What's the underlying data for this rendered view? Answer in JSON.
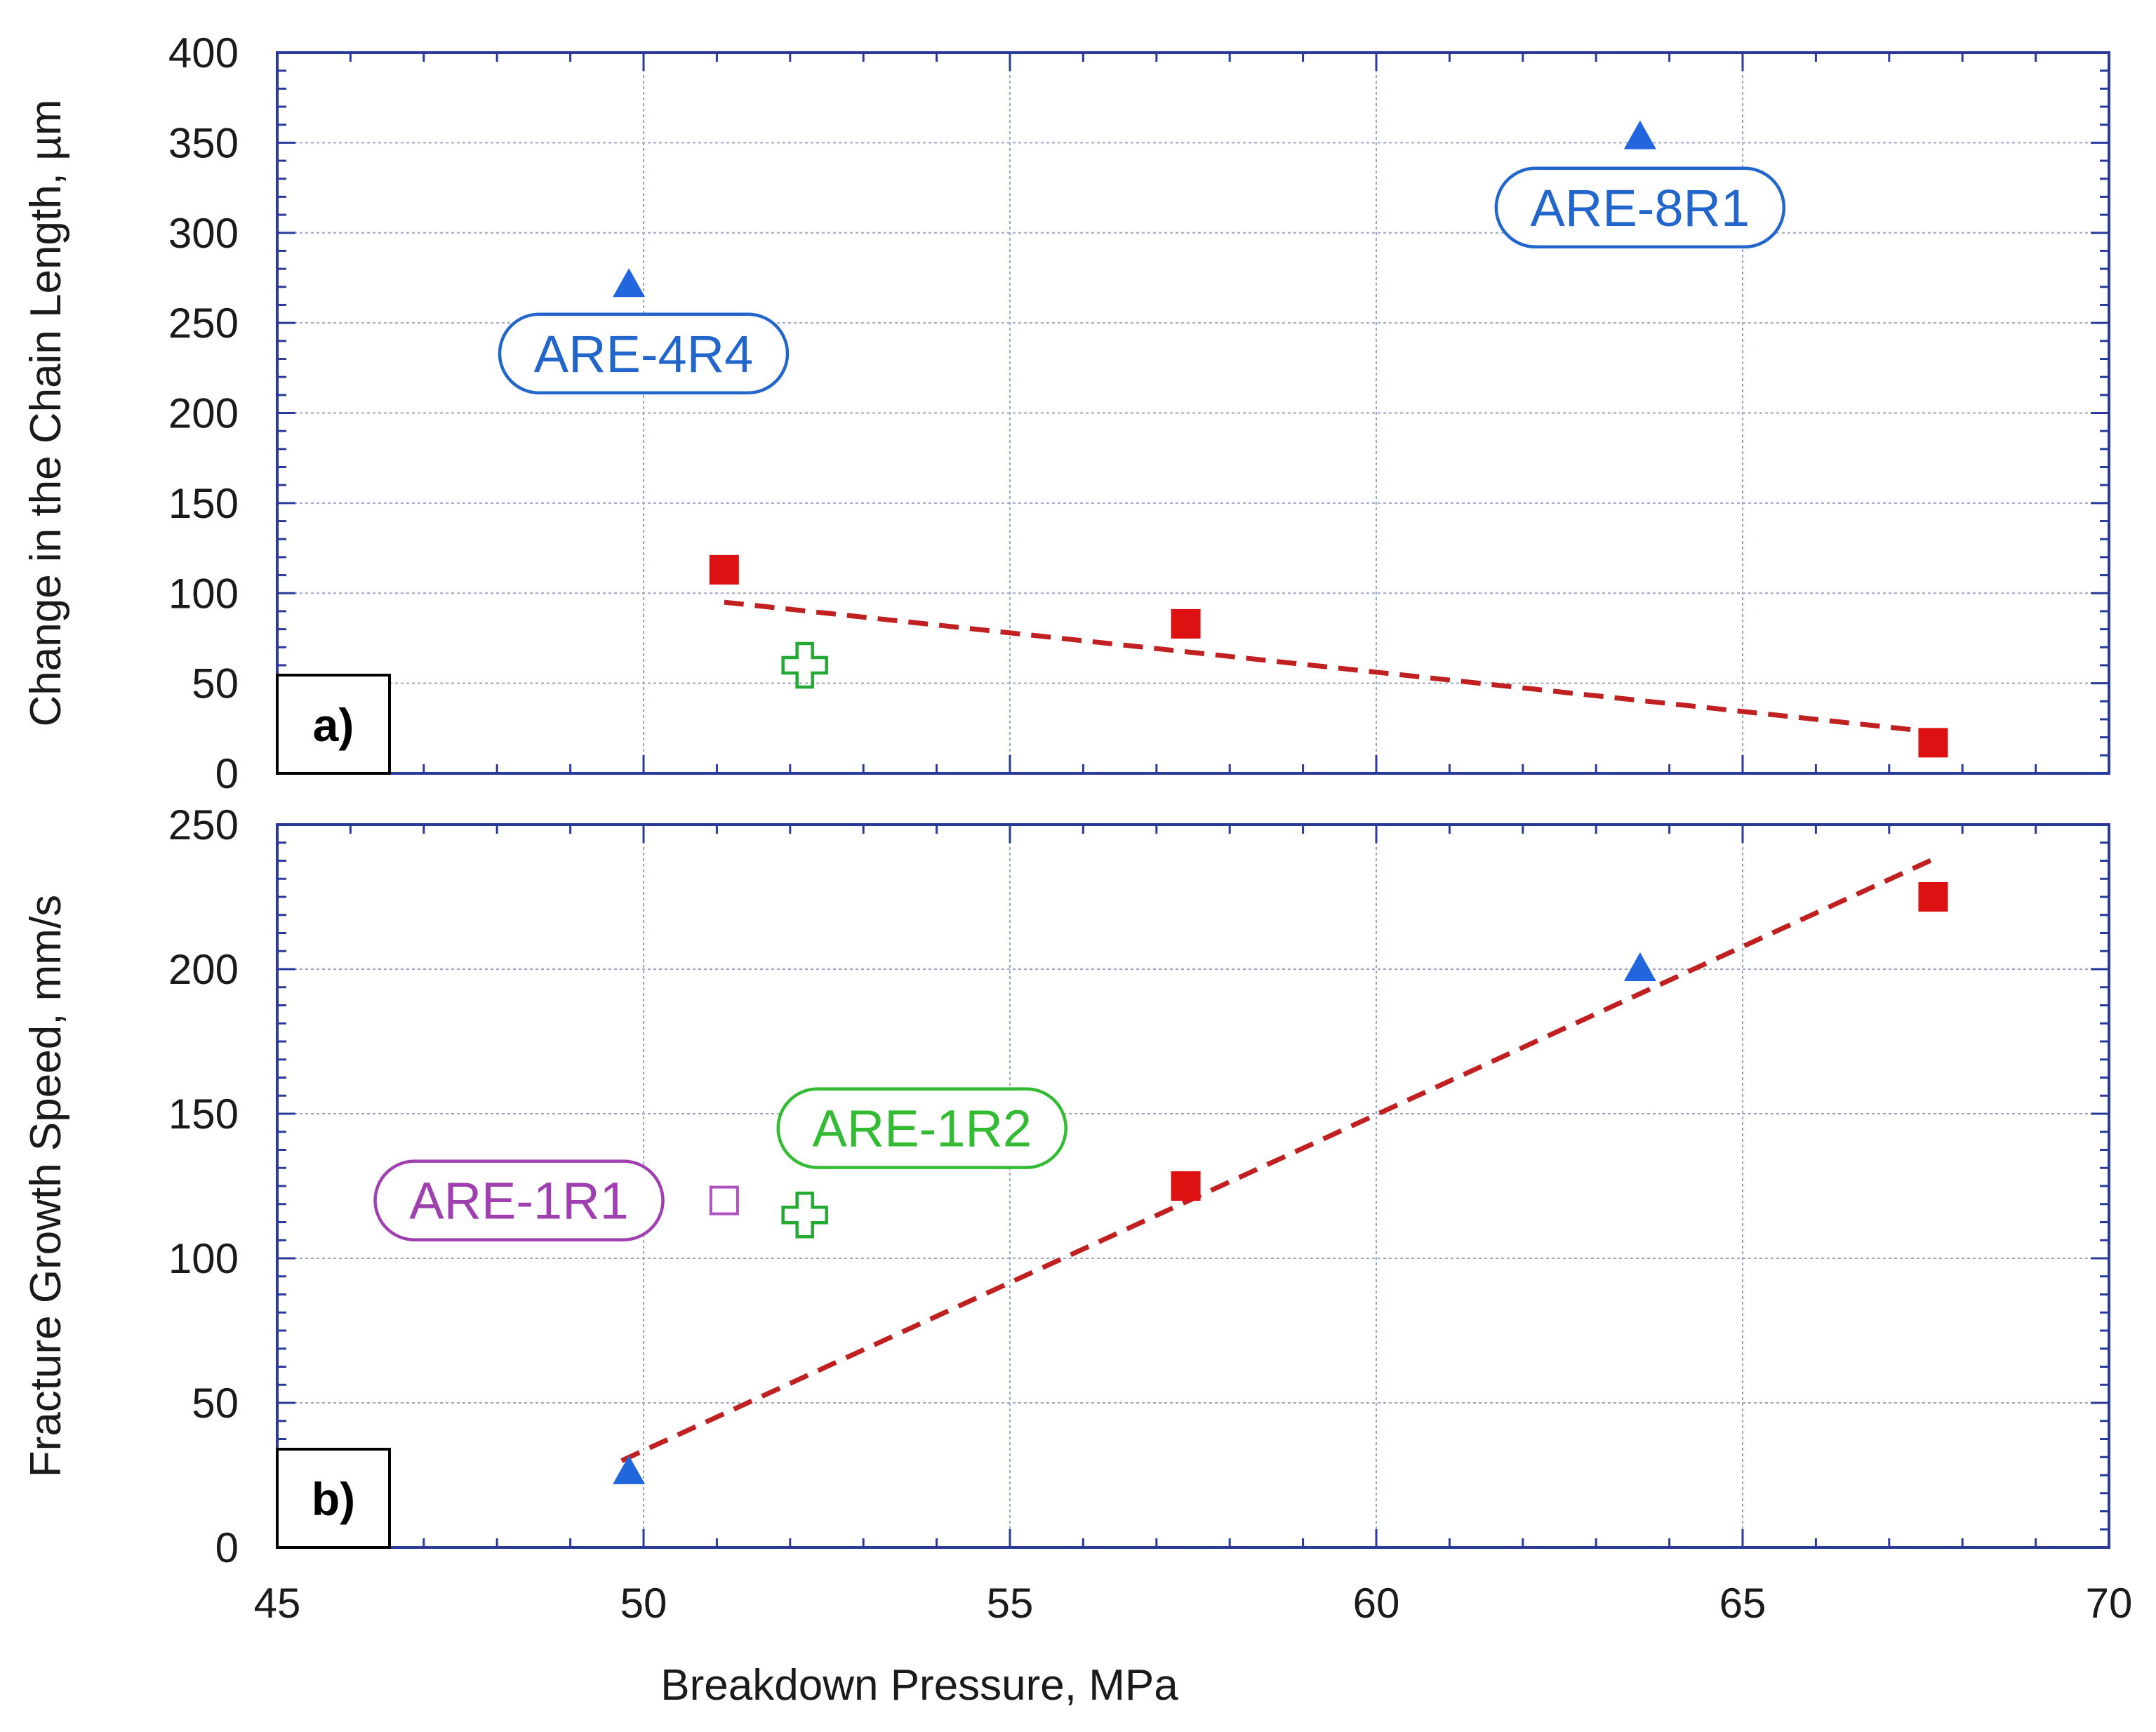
{
  "chart_data": [
    {
      "type": "scatter",
      "panel_label": "a)",
      "ylabel": "Change in the Chain Length, µm",
      "xlabel": "",
      "xlim": [
        45,
        70
      ],
      "ylim": [
        0,
        400
      ],
      "y_ticks": [
        0,
        50,
        100,
        150,
        200,
        250,
        300,
        350,
        400
      ],
      "grid": true,
      "series": [
        {
          "name": "red squares",
          "marker": "filled-square",
          "color": "#dd1111",
          "points": [
            {
              "x": 51.1,
              "y": 113
            },
            {
              "x": 57.4,
              "y": 83
            },
            {
              "x": 67.6,
              "y": 17
            }
          ]
        },
        {
          "name": "blue triangles",
          "marker": "filled-triangle",
          "color": "#2266dd",
          "points": [
            {
              "x": 49.8,
              "y": 271
            },
            {
              "x": 63.6,
              "y": 353
            }
          ]
        },
        {
          "name": "green cross",
          "marker": "open-cross",
          "color": "#22aa33",
          "points": [
            {
              "x": 52.2,
              "y": 60
            }
          ]
        }
      ],
      "trendline": {
        "color": "#c02020",
        "points": [
          {
            "x": 51.1,
            "y": 95
          },
          {
            "x": 67.6,
            "y": 23
          }
        ]
      },
      "annotations": [
        {
          "text": "ARE-4R4",
          "color": "#2266cc",
          "x": 50.0,
          "y": 233
        },
        {
          "text": "ARE-8R1",
          "color": "#2266cc",
          "x": 63.6,
          "y": 314
        }
      ]
    },
    {
      "type": "scatter",
      "panel_label": "b)",
      "ylabel": "Fracture Growth Speed, mm/s",
      "xlabel": "Breakdown Pressure, MPa",
      "xlim": [
        45,
        70
      ],
      "ylim": [
        0,
        250
      ],
      "x_ticks": [
        45,
        50,
        55,
        60,
        65,
        70
      ],
      "y_ticks": [
        0,
        50,
        100,
        150,
        200,
        250
      ],
      "grid": true,
      "series": [
        {
          "name": "red squares",
          "marker": "filled-square",
          "color": "#dd1111",
          "points": [
            {
              "x": 57.4,
              "y": 125
            },
            {
              "x": 67.6,
              "y": 225
            }
          ]
        },
        {
          "name": "blue triangles",
          "marker": "filled-triangle",
          "color": "#2266dd",
          "points": [
            {
              "x": 49.8,
              "y": 26
            },
            {
              "x": 63.6,
              "y": 200
            }
          ]
        },
        {
          "name": "green cross",
          "marker": "open-cross",
          "color": "#22aa33",
          "points": [
            {
              "x": 52.2,
              "y": 115
            }
          ]
        },
        {
          "name": "magenta square",
          "marker": "open-square",
          "color": "#b050c0",
          "points": [
            {
              "x": 51.1,
              "y": 120
            }
          ]
        }
      ],
      "trendline": {
        "color": "#c02020",
        "points": [
          {
            "x": 49.7,
            "y": 30
          },
          {
            "x": 67.6,
            "y": 238
          }
        ]
      },
      "annotations": [
        {
          "text": "ARE-1R2",
          "color": "#33bb33",
          "x": 53.8,
          "y": 145
        },
        {
          "text": "ARE-1R1",
          "color": "#a040b0",
          "x": 48.3,
          "y": 120
        }
      ]
    }
  ]
}
